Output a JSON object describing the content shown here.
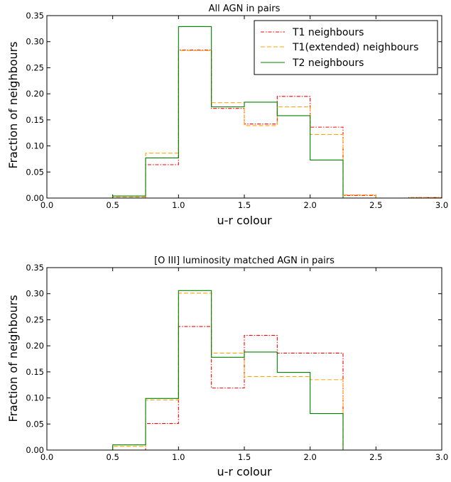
{
  "chart_data": [
    {
      "type": "step",
      "title": "All AGN in pairs",
      "xlabel": "u-r colour",
      "ylabel": "Fraction of neighbours",
      "xlim": [
        0.0,
        3.0
      ],
      "ylim": [
        0.0,
        0.35
      ],
      "xticks": [
        "0.0",
        "0.5",
        "1.0",
        "1.5",
        "2.0",
        "2.5",
        "3.0"
      ],
      "yticks": [
        "0.00",
        "0.05",
        "0.10",
        "0.15",
        "0.20",
        "0.25",
        "0.30",
        "0.35"
      ],
      "bin_edges": [
        0.0,
        0.25,
        0.5,
        0.75,
        1.0,
        1.25,
        1.5,
        1.75,
        2.0,
        2.25,
        2.5,
        2.75,
        3.0
      ],
      "legend": {
        "position": "top-right",
        "show": true
      },
      "series": [
        {
          "name": "T1 neighbours",
          "color": "#ff0000",
          "style": "dashdot",
          "values": [
            0,
            0,
            0,
            0.064,
            0.284,
            0.172,
            0.142,
            0.195,
            0.136,
            0.005,
            0,
            0.001
          ]
        },
        {
          "name": "T1(extended) neighbours",
          "color": "#ffa500",
          "style": "dashed",
          "values": [
            0,
            0,
            0.002,
            0.086,
            0.283,
            0.183,
            0.139,
            0.175,
            0.122,
            0.006,
            0,
            0.001
          ]
        },
        {
          "name": "T2 neighbours",
          "color": "#008000",
          "style": "solid",
          "values": [
            0,
            0,
            0.004,
            0.077,
            0.329,
            0.175,
            0.184,
            0.158,
            0.073,
            0,
            0,
            0
          ]
        }
      ]
    },
    {
      "type": "step",
      "title": "[O III] luminosity matched AGN in pairs",
      "xlabel": "u-r colour",
      "ylabel": "Fraction of neighbours",
      "xlim": [
        0.0,
        3.0
      ],
      "ylim": [
        0.0,
        0.35
      ],
      "xticks": [
        "0.0",
        "0.5",
        "1.0",
        "1.5",
        "2.0",
        "2.5",
        "3.0"
      ],
      "yticks": [
        "0.00",
        "0.05",
        "0.10",
        "0.15",
        "0.20",
        "0.25",
        "0.30",
        "0.35"
      ],
      "bin_edges": [
        0.0,
        0.25,
        0.5,
        0.75,
        1.0,
        1.25,
        1.5,
        1.75,
        2.0,
        2.25,
        2.5,
        2.75,
        3.0
      ],
      "legend": {
        "show": false
      },
      "series": [
        {
          "name": "T1 neighbours",
          "color": "#ff0000",
          "style": "dashdot",
          "values": [
            0,
            0,
            0,
            0.051,
            0.237,
            0.119,
            0.22,
            0.186,
            0.186,
            0,
            0,
            0
          ]
        },
        {
          "name": "T1(extended) neighbours",
          "color": "#ffa500",
          "style": "dashed",
          "values": [
            0,
            0,
            0.007,
            0.096,
            0.301,
            0.186,
            0.141,
            0.141,
            0.135,
            0,
            0,
            0
          ]
        },
        {
          "name": "T2 neighbours",
          "color": "#008000",
          "style": "solid",
          "values": [
            0,
            0,
            0.01,
            0.099,
            0.306,
            0.178,
            0.188,
            0.149,
            0.07,
            0,
            0,
            0
          ]
        }
      ]
    }
  ]
}
